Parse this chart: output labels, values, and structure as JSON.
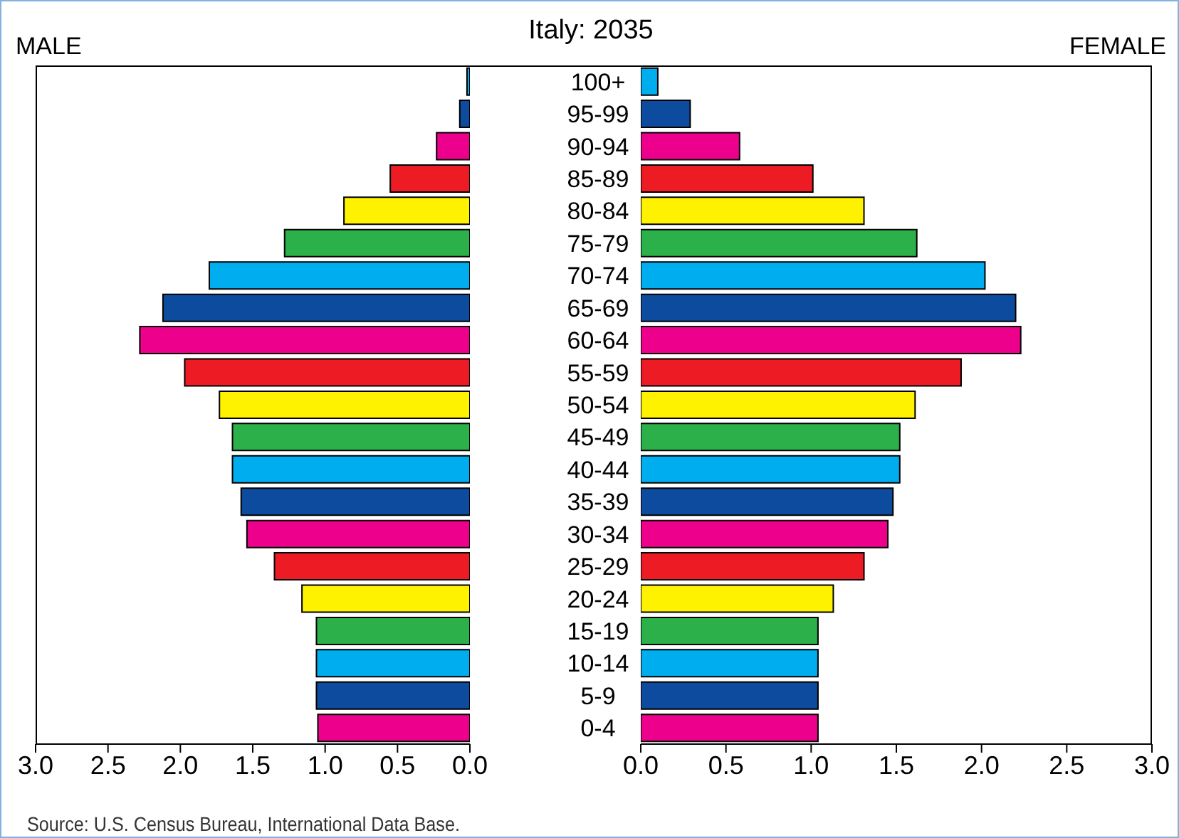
{
  "chart_data": [
    {
      "type": "bar",
      "orientation": "horizontal",
      "title": "Italy: 2035",
      "subtitle": "MALE",
      "categories": [
        "100+",
        "95-99",
        "90-94",
        "85-89",
        "80-84",
        "75-79",
        "70-74",
        "65-69",
        "60-64",
        "55-59",
        "50-54",
        "45-49",
        "40-44",
        "35-39",
        "30-34",
        "25-29",
        "20-24",
        "15-19",
        "10-14",
        "5-9",
        "0-4"
      ],
      "values": [
        0.02,
        0.07,
        0.23,
        0.55,
        0.87,
        1.28,
        1.8,
        2.12,
        2.28,
        1.97,
        1.73,
        1.64,
        1.64,
        1.58,
        1.54,
        1.35,
        1.16,
        1.06,
        1.06,
        1.06,
        1.05
      ],
      "colors": [
        "#00aeef",
        "#0d4b9e",
        "#ec008c",
        "#ed1c24",
        "#fff200",
        "#2bb04a",
        "#00aeef",
        "#0d4b9e",
        "#ec008c",
        "#ed1c24",
        "#fff200",
        "#2bb04a",
        "#00aeef",
        "#0d4b9e",
        "#ec008c",
        "#ed1c24",
        "#fff200",
        "#2bb04a",
        "#00aeef",
        "#0d4b9e",
        "#ec008c"
      ],
      "xlim": [
        3,
        0
      ],
      "xticks": [
        {
          "value": 3,
          "label": "3.0"
        },
        {
          "value": 2.5,
          "label": "2.5"
        },
        {
          "value": 2,
          "label": "2.0"
        },
        {
          "value": 1.5,
          "label": "1.5"
        },
        {
          "value": 1,
          "label": "1.0"
        },
        {
          "value": 0.5,
          "label": "0.5"
        },
        {
          "value": 0,
          "label": "0.0"
        }
      ],
      "annotations": [
        "Source: U.S. Census Bureau, International Data Base."
      ]
    },
    {
      "type": "bar",
      "orientation": "horizontal",
      "subtitle": "FEMALE",
      "tick_labels": "x",
      "categories": [
        null,
        null,
        null,
        null,
        null,
        null,
        null,
        null,
        null,
        null,
        null,
        null,
        null,
        null,
        null,
        null,
        null,
        null,
        null,
        null,
        null
      ],
      "values": [
        0.1,
        0.29,
        0.58,
        1.01,
        1.31,
        1.62,
        2.02,
        2.2,
        2.23,
        1.88,
        1.61,
        1.52,
        1.52,
        1.48,
        1.45,
        1.31,
        1.13,
        1.04,
        1.04,
        1.04,
        1.04
      ],
      "colors": [
        "#00aeef",
        "#0d4b9e",
        "#ec008c",
        "#ed1c24",
        "#fff200",
        "#2bb04a",
        "#00aeef",
        "#0d4b9e",
        "#ec008c",
        "#ed1c24",
        "#fff200",
        "#2bb04a",
        "#00aeef",
        "#0d4b9e",
        "#ec008c",
        "#ed1c24",
        "#fff200",
        "#2bb04a",
        "#00aeef",
        "#0d4b9e",
        "#ec008c"
      ],
      "xlim": [
        0,
        3
      ],
      "xticks": [
        {
          "value": 0,
          "label": "0.0"
        },
        {
          "value": 0.5,
          "label": "0.5"
        },
        {
          "value": 1,
          "label": "1.0"
        },
        {
          "value": 1.5,
          "label": "1.5"
        },
        {
          "value": 2,
          "label": "2.0"
        },
        {
          "value": 2.5,
          "label": "2.5"
        },
        {
          "value": 3,
          "label": "3.0"
        }
      ]
    }
  ]
}
